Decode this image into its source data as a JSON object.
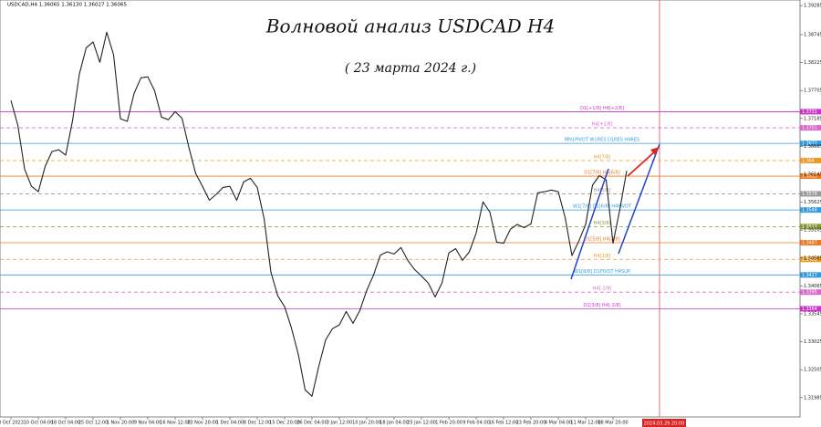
{
  "chart_data": {
    "type": "line",
    "header": "USDCAD,H4  1.36065 1.36130 1.36027 1.36065",
    "title": "Волновой анализ USDCAD H4",
    "subtitle": "( 23 марта 2024 г.)",
    "cursor_label": "2024.03.29 20:00",
    "color": "#222222",
    "categories": [
      "3 Oct 2023",
      null,
      null,
      null,
      "10 Oct 04:00",
      null,
      null,
      null,
      "18 Oct 04:00",
      null,
      null,
      null,
      "25 Oct 12:00",
      null,
      null,
      null,
      "1 Nov 20:00",
      null,
      null,
      null,
      "9 Nov 04:00",
      null,
      null,
      null,
      "16 Nov 12:00",
      null,
      null,
      null,
      "23 Nov 20:00",
      null,
      null,
      null,
      "1 Dec 04:00",
      null,
      null,
      null,
      "8 Dec 12:00",
      null,
      null,
      null,
      "15 Dec 20:00",
      null,
      null,
      null,
      "26 Dec 04:00",
      null,
      null,
      null,
      "3 Jan 12:00",
      null,
      null,
      null,
      "10 Jan 20:00",
      null,
      null,
      null,
      "18 Jan 04:00",
      null,
      null,
      null,
      "25 Jan 12:00",
      null,
      null,
      null,
      "1 Feb 20:00",
      null,
      null,
      null,
      "9 Feb 04:00",
      null,
      null,
      null,
      "16 Feb 12:00",
      null,
      null,
      null,
      "23 Feb 20:00",
      null,
      null,
      null,
      "4 Mar 04:00",
      null,
      null,
      null,
      "11 Mar 12:00",
      null,
      null,
      null,
      "18 Mar 20:00",
      null,
      null
    ],
    "values": [
      1.3752,
      1.3706,
      1.3624,
      1.3592,
      1.3582,
      1.3629,
      1.3657,
      1.366,
      1.365,
      1.3714,
      1.3801,
      1.385,
      1.3861,
      1.3823,
      1.3879,
      1.3837,
      1.3718,
      1.3713,
      1.3765,
      1.3794,
      1.3796,
      1.377,
      1.3721,
      1.3716,
      1.3731,
      1.3719,
      1.3665,
      1.3616,
      1.3592,
      1.3566,
      1.3577,
      1.359,
      1.3592,
      1.3566,
      1.36,
      1.3607,
      1.359,
      1.3532,
      1.3432,
      1.3388,
      1.3368,
      1.3328,
      1.3279,
      1.3213,
      1.3201,
      1.3257,
      1.3306,
      1.3327,
      1.3334,
      1.3359,
      1.3337,
      1.3361,
      1.3398,
      1.3427,
      1.3464,
      1.347,
      1.3466,
      1.3478,
      1.3454,
      1.3437,
      1.3425,
      1.3412,
      1.3386,
      1.3412,
      1.3468,
      1.3476,
      1.3454,
      1.347,
      1.3505,
      1.3563,
      1.3544,
      1.3488,
      1.3486,
      1.3512,
      1.3521,
      1.3515,
      1.3522,
      1.358,
      1.3582,
      1.3585,
      1.3582,
      1.3534,
      1.3463,
      1.349,
      1.3521,
      1.3594,
      1.3612,
      1.3604,
      1.3486,
      1.3549,
      1.3621
    ],
    "ylim": [
      1.3154,
      1.3939
    ],
    "yticks": [
      1.39285,
      1.38745,
      1.38225,
      1.37705,
      1.37185,
      1.36665,
      1.36145,
      1.35625,
      1.35105,
      1.34585,
      1.34065,
      1.33545,
      1.33025,
      1.32505,
      1.31985
    ],
    "levels": [
      {
        "name": "D1[+1/8] H4[+2/8]",
        "value": 1.3731,
        "color": "#cc33cc",
        "dashed": false
      },
      {
        "name": "H4[+1/8]",
        "value": 1.3701,
        "color": "#dd66cc",
        "dashed": true
      },
      {
        "name": "MN1PIVOT W1RES D1RES H4RES",
        "value": 1.3672,
        "color": "#3399dd",
        "dashed": false
      },
      {
        "name": "H4[7/8]",
        "value": 1.364,
        "color": "#ee9922",
        "dashed": true
      },
      {
        "name": "D1[7/8] H4[6/8]",
        "value": 1.3611,
        "color": "#ee7722",
        "dashed": false
      },
      {
        "name": "H4[5/8]",
        "value": 1.3578,
        "color": "#999999",
        "dashed": true
      },
      {
        "name": "W1[7/8] D1[6/8] H4PIVOT",
        "value": 1.3548,
        "color": "#3399dd",
        "dashed": false
      },
      {
        "name": "H4[3/8]",
        "value": 1.3517,
        "color": "#889933",
        "dashed": true
      },
      {
        "name": "D1[5/8] H4[2/8]",
        "value": 1.3487,
        "color": "#ee7722",
        "dashed": false
      },
      {
        "name": "H4[1/8]",
        "value": 1.3456,
        "color": "#ee9922",
        "dashed": true
      },
      {
        "name": "W1[6/8] D1PIVOT H4SUP",
        "value": 1.3427,
        "color": "#3399dd",
        "dashed": false
      },
      {
        "name": "H4[-1/8]",
        "value": 1.3395,
        "color": "#dd66cc",
        "dashed": true
      },
      {
        "name": "D1[3/8] H4[-2/8]",
        "value": 1.3364,
        "color": "#cc33cc",
        "dashed": false
      }
    ]
  }
}
